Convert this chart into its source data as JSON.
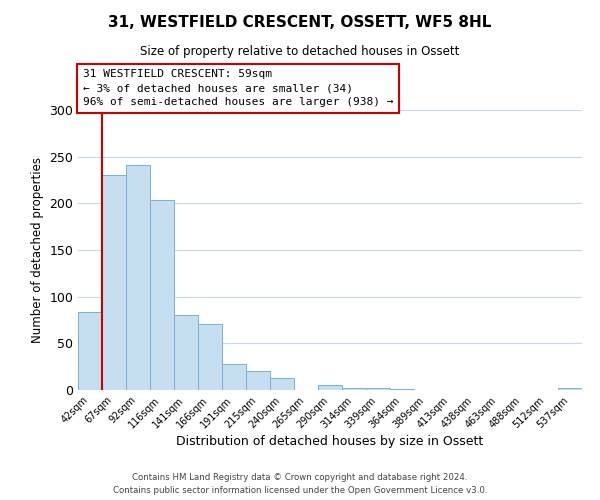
{
  "title": "31, WESTFIELD CRESCENT, OSSETT, WF5 8HL",
  "subtitle": "Size of property relative to detached houses in Ossett",
  "xlabel": "Distribution of detached houses by size in Ossett",
  "ylabel": "Number of detached properties",
  "bin_labels": [
    "42sqm",
    "67sqm",
    "92sqm",
    "116sqm",
    "141sqm",
    "166sqm",
    "191sqm",
    "215sqm",
    "240sqm",
    "265sqm",
    "290sqm",
    "314sqm",
    "339sqm",
    "364sqm",
    "389sqm",
    "413sqm",
    "438sqm",
    "463sqm",
    "488sqm",
    "512sqm",
    "537sqm"
  ],
  "bar_heights": [
    84,
    230,
    241,
    204,
    80,
    71,
    28,
    20,
    13,
    0,
    5,
    2,
    2,
    1,
    0,
    0,
    0,
    0,
    0,
    0,
    2
  ],
  "bar_color": "#c6dff0",
  "bar_edge_color": "#7ab0d4",
  "vline_color": "#cc0000",
  "ylim": [
    0,
    300
  ],
  "yticks": [
    0,
    50,
    100,
    150,
    200,
    250,
    300
  ],
  "annotation_line1": "31 WESTFIELD CRESCENT: 59sqm",
  "annotation_line2": "← 3% of detached houses are smaller (34)",
  "annotation_line3": "96% of semi-detached houses are larger (938) →",
  "annotation_box_color": "#cc0000",
  "footer_line1": "Contains HM Land Registry data © Crown copyright and database right 2024.",
  "footer_line2": "Contains public sector information licensed under the Open Government Licence v3.0.",
  "background_color": "#ffffff",
  "grid_color": "#c8d8e8"
}
